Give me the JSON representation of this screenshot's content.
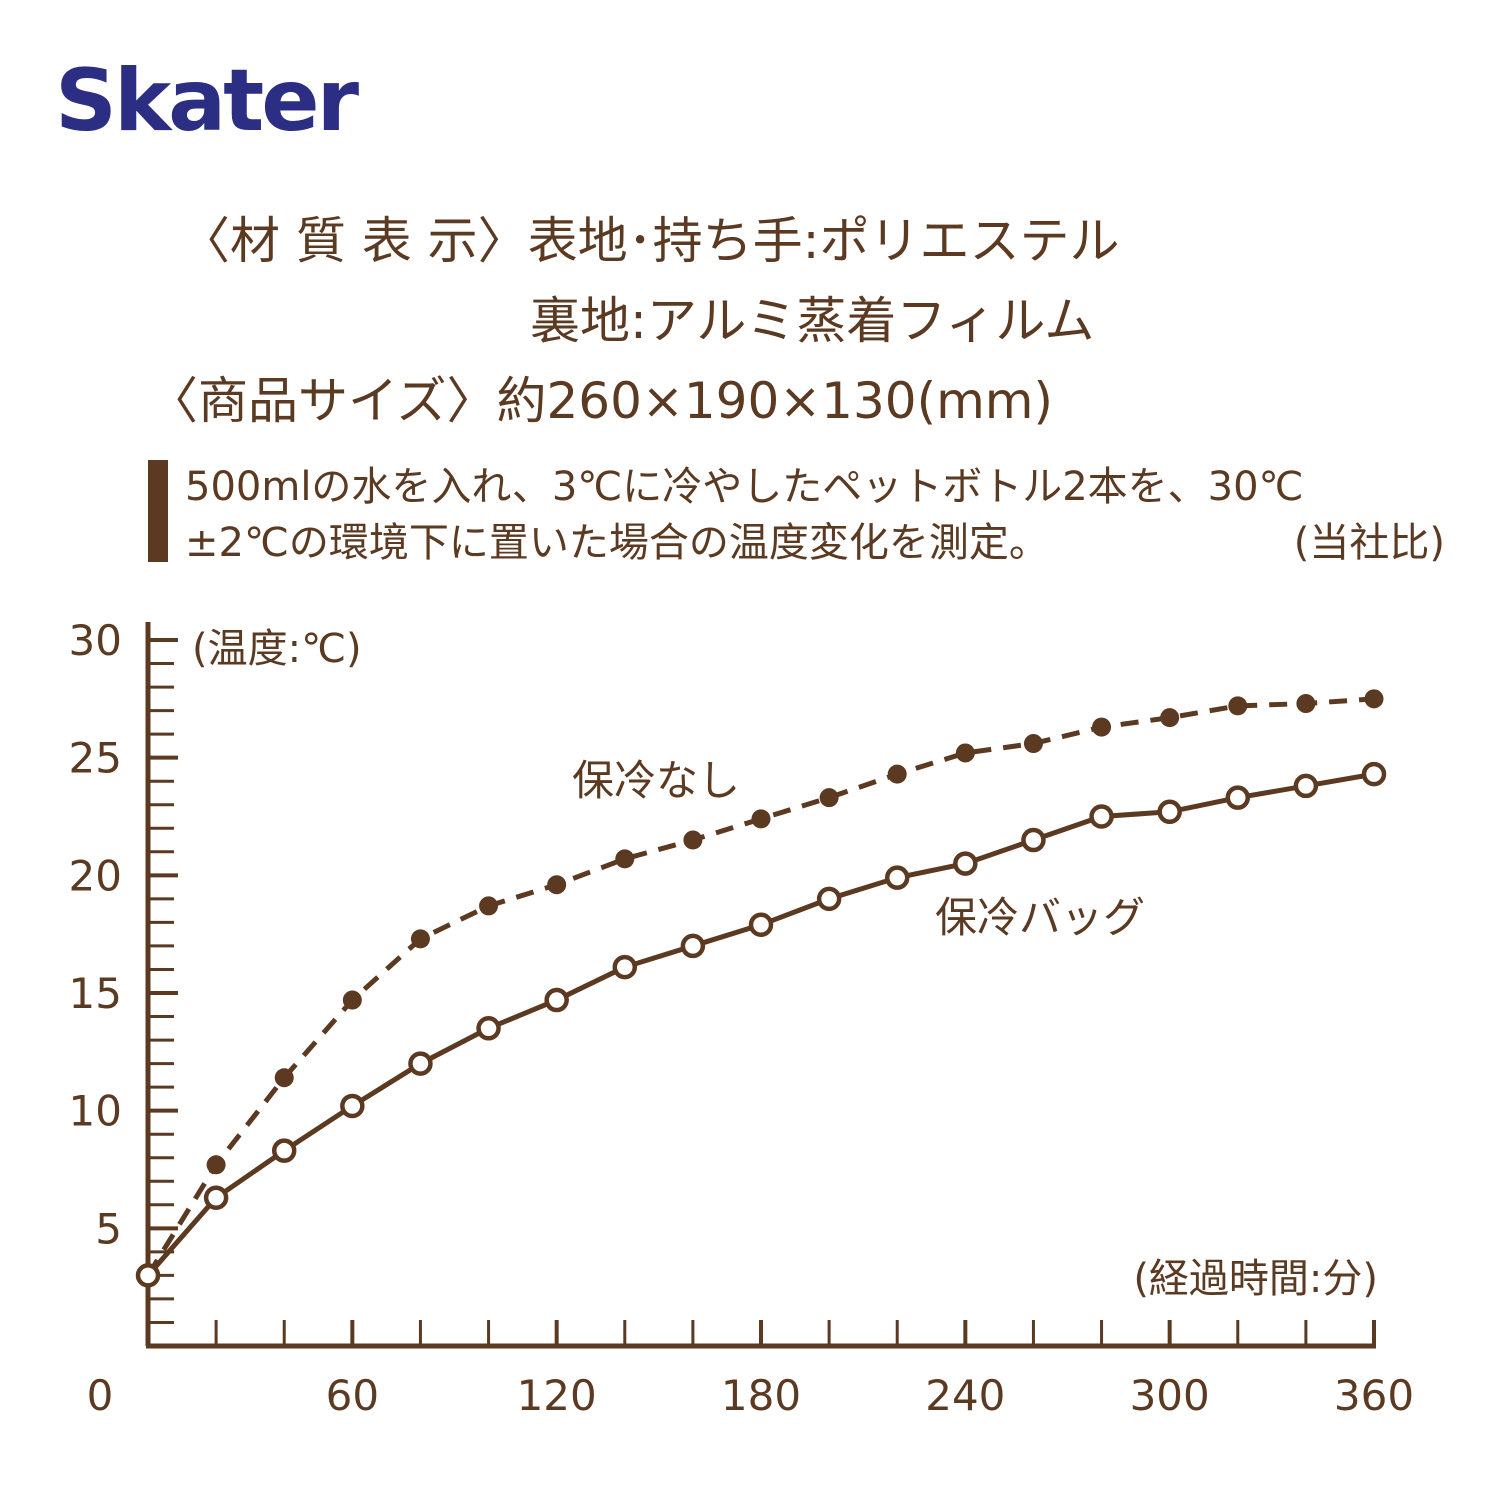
{
  "logo": "Skater",
  "header": {
    "material_line1": "〈材 質 表 示〉表地･持ち手:ポリエステル",
    "material_line2": "裏地:アルミ蒸着フィルム",
    "size_line": "〈商品サイズ〉約260×190×130(mm)",
    "note_line1": "500mlの水を入れ、3℃に冷やしたペットボトル2本を、30℃",
    "note_line2": "±2℃の環境下に置いた場合の温度変化を測定。",
    "note_source": "(当社比)"
  },
  "chart_data": {
    "type": "line",
    "y_label": "(温度:℃)",
    "x_label": "(経過時間:分)",
    "x": [
      0,
      20,
      40,
      60,
      80,
      100,
      120,
      140,
      160,
      180,
      200,
      220,
      240,
      260,
      280,
      300,
      320,
      340,
      360
    ],
    "series": [
      {
        "name": "保冷なし",
        "color": "#5b3a21",
        "dashed": true,
        "marker": "filled",
        "values": [
          3,
          7.7,
          11.4,
          14.7,
          17.3,
          18.7,
          19.6,
          20.7,
          21.5,
          22.4,
          23.3,
          24.3,
          25.2,
          25.6,
          26.3,
          26.7,
          27.2,
          27.3,
          27.5
        ]
      },
      {
        "name": "保冷バッグ",
        "color": "#5b3a21",
        "dashed": false,
        "marker": "open",
        "values": [
          3,
          6.3,
          8.3,
          10.2,
          12.0,
          13.5,
          14.7,
          16.1,
          17.0,
          17.9,
          19.0,
          19.9,
          20.5,
          21.5,
          22.5,
          22.7,
          23.3,
          23.8,
          24.3
        ]
      }
    ],
    "xlim": [
      0,
      360
    ],
    "ylim": [
      0,
      30
    ],
    "xticks": [
      0,
      60,
      120,
      180,
      240,
      300,
      360
    ],
    "yticks": [
      5,
      10,
      15,
      20,
      25,
      30
    ],
    "xticks_minor": [
      20,
      40,
      80,
      100,
      140,
      160,
      200,
      220,
      260,
      280,
      320,
      340
    ],
    "yticks_minor": [
      1,
      2,
      3,
      4,
      6,
      7,
      8,
      9,
      11,
      12,
      13,
      14,
      16,
      17,
      18,
      19,
      21,
      22,
      23,
      24,
      26,
      27,
      28,
      29
    ]
  }
}
